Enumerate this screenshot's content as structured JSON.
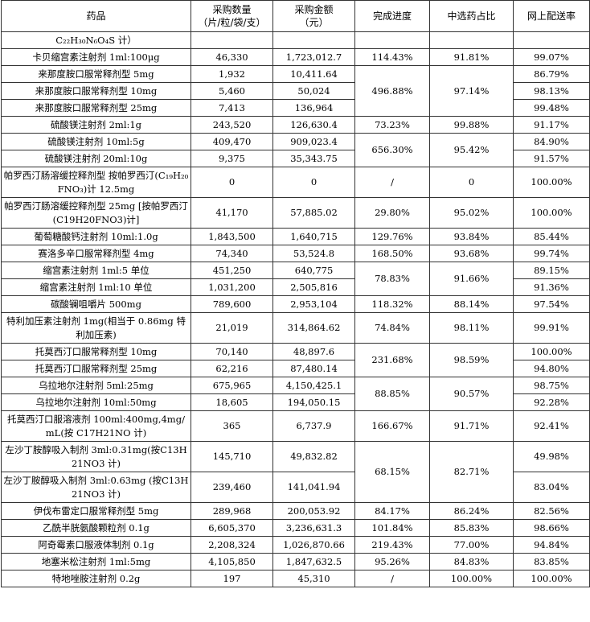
{
  "table": {
    "headers": [
      "药品",
      "采购数量\n（片/粒/袋/支）",
      "采购金额\n（元）",
      "完成进度",
      "中选药占比",
      "网上配送率"
    ],
    "rows": [
      {
        "name": "C₂₂H₃₀N₆O₄S 计）",
        "qty": "",
        "amt": "",
        "prog": "",
        "share": "",
        "rate": ""
      },
      {
        "name": "卡贝缩宫素注射剂 1ml:100μg",
        "qty": "46,330",
        "amt": "1,723,012.7",
        "prog": "114.43%",
        "share": "91.81%",
        "rate": "99.07%"
      },
      {
        "name": "来那度胺口服常释剂型 5mg",
        "qty": "1,932",
        "amt": "10,411.64",
        "prog": "496.88%",
        "share": "97.14%",
        "rate": "86.79%"
      },
      {
        "name": "来那度胺口服常释剂型 10mg",
        "qty": "5,460",
        "amt": "50,024",
        "rate": "98.13%"
      },
      {
        "name": "来那度胺口服常释剂型 25mg",
        "qty": "7,413",
        "amt": "136,964",
        "rate": "99.48%"
      },
      {
        "name": "硫酸镁注射剂 2ml:1g",
        "qty": "243,520",
        "amt": "126,630.4",
        "prog": "73.23%",
        "share": "99.88%",
        "rate": "91.17%"
      },
      {
        "name": "硫酸镁注射剂 10ml:5g",
        "qty": "409,470",
        "amt": "909,023.4",
        "prog": "656.30%",
        "share": "95.42%",
        "rate": "84.90%"
      },
      {
        "name": "硫酸镁注射剂 20ml:10g",
        "qty": "9,375",
        "amt": "35,343.75",
        "rate": "91.57%"
      },
      {
        "name": "帕罗西汀肠溶缓控释剂型 按帕罗西汀(C₁₉H₂₀FNO₃)计 12.5mg",
        "qty": "0",
        "amt": "0",
        "prog": "/",
        "share": "0",
        "rate": "100.00%"
      },
      {
        "name": "帕罗西汀肠溶缓控释剂型 25mg [按帕罗西汀(C19H20FNO3)计]",
        "qty": "41,170",
        "amt": "57,885.02",
        "prog": "29.80%",
        "share": "95.02%",
        "rate": "100.00%"
      },
      {
        "name": "葡萄糖酸钙注射剂 10ml:1.0g",
        "qty": "1,843,500",
        "amt": "1,640,715",
        "prog": "129.76%",
        "share": "93.84%",
        "rate": "85.44%"
      },
      {
        "name": "赛洛多辛口服常释剂型 4mg",
        "qty": "74,340",
        "amt": "53,524.8",
        "prog": "168.50%",
        "share": "93.68%",
        "rate": "99.74%"
      },
      {
        "name": "缩宫素注射剂 1ml:5 单位",
        "qty": "451,250",
        "amt": "640,775",
        "prog": "78.83%",
        "share": "91.66%",
        "rate": "89.15%"
      },
      {
        "name": "缩宫素注射剂 1ml:10 单位",
        "qty": "1,031,200",
        "amt": "2,505,816",
        "rate": "91.36%"
      },
      {
        "name": "碳酸镧咀嚼片 500mg",
        "qty": "789,600",
        "amt": "2,953,104",
        "prog": "118.32%",
        "share": "88.14%",
        "rate": "97.54%"
      },
      {
        "name": "特利加压素注射剂 1mg(相当于 0.86mg 特利加压素)",
        "qty": "21,019",
        "amt": "314,864.62",
        "prog": "74.84%",
        "share": "98.11%",
        "rate": "99.91%"
      },
      {
        "name": "托莫西汀口服常释剂型 10mg",
        "qty": "70,140",
        "amt": "48,897.6",
        "prog": "231.68%",
        "share": "98.59%",
        "rate": "100.00%"
      },
      {
        "name": "托莫西汀口服常释剂型 25mg",
        "qty": "62,216",
        "amt": "87,480.14",
        "rate": "94.80%"
      },
      {
        "name": "乌拉地尔注射剂 5ml:25mg",
        "qty": "675,965",
        "amt": "4,150,425.1",
        "prog": "88.85%",
        "share": "90.57%",
        "rate": "98.75%"
      },
      {
        "name": "乌拉地尔注射剂 10ml:50mg",
        "qty": "18,605",
        "amt": "194,050.15",
        "rate": "92.28%"
      },
      {
        "name": "托莫西汀口服溶液剂 100ml:400mg,4mg/mL(按 C17H21NO 计)",
        "qty": "365",
        "amt": "6,737.9",
        "prog": "166.67%",
        "share": "91.71%",
        "rate": "92.41%"
      },
      {
        "name": "左沙丁胺醇吸入制剂 3ml:0.31mg(按C13H21NO3 计)",
        "qty": "145,710",
        "amt": "49,832.82",
        "prog": "68.15%",
        "share": "82.71%",
        "rate": "49.98%"
      },
      {
        "name": "左沙丁胺醇吸入制剂 3ml:0.63mg (按C13H21NO3 计)",
        "qty": "239,460",
        "amt": "141,041.94",
        "rate": "83.04%"
      },
      {
        "name": "伊伐布雷定口服常释剂型 5mg",
        "qty": "289,968",
        "amt": "200,053.92",
        "prog": "84.17%",
        "share": "86.24%",
        "rate": "82.56%"
      },
      {
        "name": "乙酰半胱氨酸颗粒剂 0.1g",
        "qty": "6,605,370",
        "amt": "3,236,631.3",
        "prog": "101.84%",
        "share": "85.83%",
        "rate": "98.66%"
      },
      {
        "name": "阿奇霉素口服液体制剂 0.1g",
        "qty": "2,208,324",
        "amt": "1,026,870.66",
        "prog": "219.43%",
        "share": "77.00%",
        "rate": "94.84%"
      },
      {
        "name": "地塞米松注射剂 1ml:5mg",
        "qty": "4,105,850",
        "amt": "1,847,632.5",
        "prog": "95.26%",
        "share": "84.83%",
        "rate": "83.85%"
      },
      {
        "name": "特地唑胺注射剂 0.2g",
        "qty": "197",
        "amt": "45,310",
        "prog": "/",
        "share": "100.00%",
        "rate": "100.00%"
      }
    ]
  }
}
